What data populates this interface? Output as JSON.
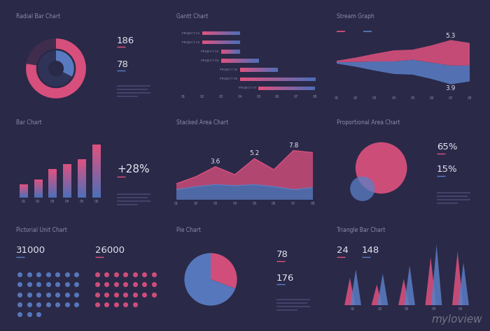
{
  "chart_data": [
    {
      "type": "radial_bar",
      "title": "Radial Bar Chart",
      "values": [
        186,
        78
      ],
      "colors": [
        "#e0527f",
        "#5b7fc6"
      ],
      "xlim": [
        0,
        240
      ],
      "data_labels": true,
      "tick_labels": false
    },
    {
      "type": "gantt",
      "title": "Gantt Chart",
      "categories": [
        "PROJECT 01",
        "PROJECT 02",
        "PROJECT 03",
        "PROJECT 04",
        "PROJECT 05",
        "PROJECT 06",
        "PROJECT 07"
      ],
      "start": [
        2,
        2,
        3,
        3,
        4,
        4,
        5
      ],
      "end": [
        4,
        4,
        4,
        5,
        6,
        8,
        8
      ],
      "color": "#e0527f",
      "xlim": [
        1,
        8
      ],
      "xticks": [
        {
          "value": 1,
          "label": "01"
        },
        {
          "value": 2,
          "label": "02"
        },
        {
          "value": 3,
          "label": "03"
        },
        {
          "value": 4,
          "label": "04"
        },
        {
          "value": 5,
          "label": "05"
        },
        {
          "value": 6,
          "label": "06"
        },
        {
          "value": 7,
          "label": "07"
        },
        {
          "value": 8,
          "label": "08"
        }
      ],
      "tick_labels": "x"
    },
    {
      "type": "stream",
      "title": "Stream Graph",
      "categories": [
        "01",
        "02",
        "03",
        "04",
        "05",
        "06",
        "07",
        "08"
      ],
      "series": [
        {
          "color": "#5b7fc6",
          "values": [
            0.3,
            1.0,
            1.9,
            2.6,
            3.1,
            3.4,
            3.9,
            3.3
          ],
          "value_labels": [
            null,
            null,
            null,
            null,
            null,
            null,
            "3.9",
            null
          ]
        },
        {
          "color": "#e0527f",
          "values": [
            0.3,
            0.9,
            1.6,
            2.3,
            2.1,
            3.6,
            5.3,
            4.7
          ],
          "value_labels": [
            null,
            null,
            null,
            null,
            null,
            null,
            "5.3",
            null
          ]
        }
      ],
      "data_labels": true,
      "tick_labels": "x"
    },
    {
      "type": "bar",
      "title": "Bar Chart",
      "categories": [
        "01",
        "02",
        "03",
        "04",
        "05",
        "06"
      ],
      "values": [
        17,
        24,
        37,
        44,
        50,
        69
      ],
      "color": "#e0527f",
      "annotations": [
        "+28%"
      ],
      "tick_labels": "x"
    },
    {
      "type": "area",
      "title": "Stacked Area Chart",
      "stacked": true,
      "categories": [
        "01",
        "02",
        "03",
        "04",
        "05",
        "06",
        "07",
        "08"
      ],
      "series": [
        {
          "color": "#5b7fc6",
          "values": [
            2.0,
            2.6,
            3.0,
            2.8,
            3.0,
            2.6,
            2.0,
            2.4
          ]
        },
        {
          "color": "#e0527f",
          "values": [
            1.2,
            2.0,
            3.6,
            2.2,
            5.2,
            3.4,
            7.8,
            7.0
          ],
          "value_labels": [
            null,
            null,
            "3.6",
            null,
            "5.2",
            null,
            "7.8",
            null
          ]
        }
      ],
      "data_labels": true,
      "tick_labels": "x"
    },
    {
      "type": "proportional_area",
      "title": "Proportional Area Chart",
      "values": [
        65,
        15
      ],
      "value_labels": [
        "65%",
        "15%"
      ],
      "colors": [
        "#e0527f",
        "#5b7fc6"
      ],
      "data_labels": true,
      "tick_labels": false
    },
    {
      "type": "pictorial_unit",
      "title": "Pictorial Unit Chart",
      "values": [
        31000,
        26000
      ],
      "colors": [
        "#5b7fc6",
        "#e0527f"
      ],
      "data_labels": true,
      "tick_labels": false
    },
    {
      "type": "pie",
      "title": "Pie Chart",
      "values": [
        78,
        176
      ],
      "colors": [
        "#e0527f",
        "#5b7fc6"
      ],
      "data_labels": true,
      "tick_labels": false
    },
    {
      "type": "triangle_bar",
      "title": "Triangle Bar Chart",
      "categories": [
        "01",
        "02",
        "03",
        "04",
        "05"
      ],
      "series": [
        {
          "color": "#e0527f",
          "values": [
            40,
            30,
            38,
            70,
            78
          ]
        },
        {
          "color": "#5b7fc6",
          "values": [
            52,
            46,
            58,
            88,
            62
          ]
        }
      ],
      "annotations": [
        "24",
        "148"
      ],
      "tick_labels": "x"
    }
  ],
  "watermark": "myloview"
}
